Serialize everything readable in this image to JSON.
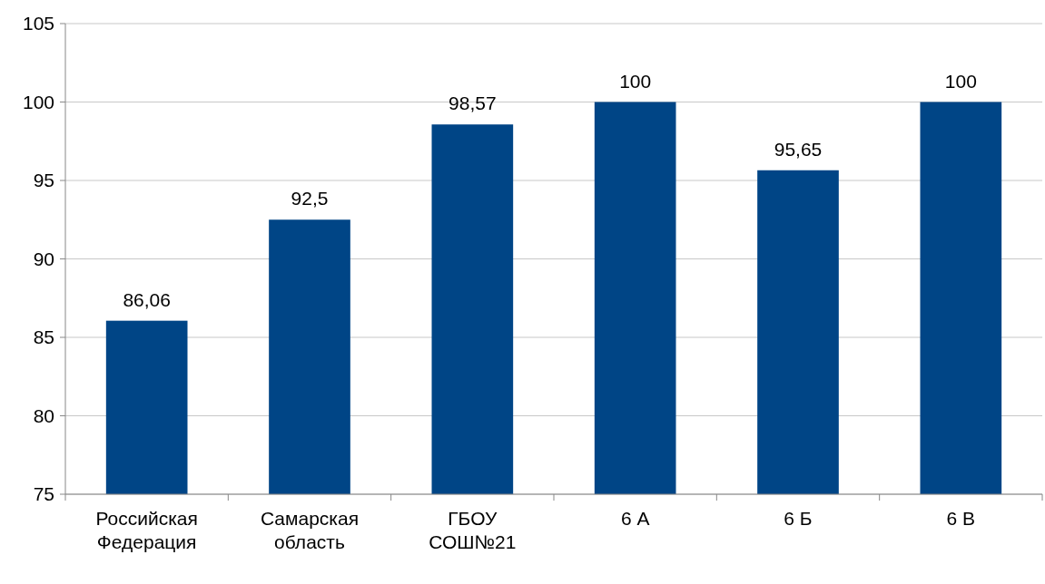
{
  "chart_data": {
    "type": "bar",
    "categories": [
      "Российская Федерация",
      "Самарская область",
      "ГБОУ СОШ№21",
      "6 А",
      "6 Б",
      "6 В"
    ],
    "values": [
      86.06,
      92.5,
      98.57,
      100,
      95.65,
      100
    ],
    "value_labels": [
      "86,06",
      "92,5",
      "98,57",
      "100",
      "95,65",
      "100"
    ],
    "color": "#004586",
    "ylim": [
      75,
      105
    ],
    "yticks": [
      75,
      80,
      85,
      90,
      95,
      100,
      105
    ],
    "grid": "y"
  }
}
